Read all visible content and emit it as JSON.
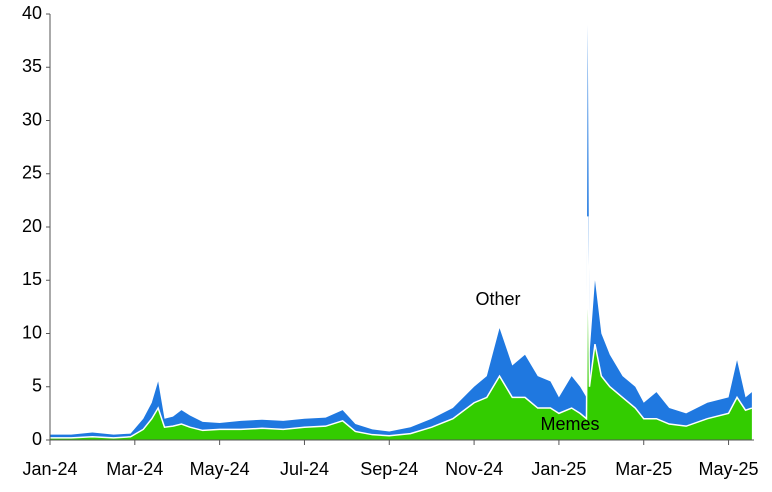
{
  "chart_data": {
    "type": "stacked_area",
    "x": [
      0,
      0.5,
      1,
      1.5,
      1.9,
      2.2,
      2.4,
      2.55,
      2.7,
      2.9,
      3.1,
      3.3,
      3.6,
      4,
      4.5,
      5,
      5.5,
      6,
      6.5,
      6.9,
      7.2,
      7.6,
      8,
      8.5,
      9,
      9.5,
      10,
      10.3,
      10.6,
      10.9,
      11.2,
      11.5,
      11.8,
      12,
      12.3,
      12.5,
      12.65,
      12.68,
      12.72,
      12.85,
      13,
      13.2,
      13.5,
      13.8,
      14,
      14.3,
      14.6,
      15,
      15.5,
      16,
      16.2,
      16.4,
      16.55
    ],
    "series": [
      {
        "name": "Memes",
        "color": "#33cc00",
        "values": [
          0.2,
          0.2,
          0.3,
          0.2,
          0.3,
          1,
          2,
          3,
          1.2,
          1.3,
          1.5,
          1.2,
          0.9,
          1,
          1,
          1.1,
          1,
          1.2,
          1.3,
          1.8,
          0.8,
          0.5,
          0.4,
          0.6,
          1.2,
          2,
          3.5,
          4,
          6,
          4,
          4,
          3,
          3,
          2.5,
          3,
          2.5,
          2,
          21,
          5,
          9,
          6,
          5,
          4,
          3,
          2,
          2,
          1.5,
          1.3,
          2,
          2.5,
          4,
          2.8,
          3
        ]
      },
      {
        "name": "Other",
        "color": "#1f78e0",
        "values": [
          0.3,
          0.3,
          0.4,
          0.3,
          0.3,
          1,
          1.5,
          2.5,
          0.8,
          0.9,
          1.3,
          1.1,
          0.8,
          0.6,
          0.8,
          0.8,
          0.8,
          0.8,
          0.8,
          1,
          0.7,
          0.5,
          0.4,
          0.6,
          0.8,
          1,
          1.5,
          2,
          4.5,
          3,
          4,
          3,
          2.5,
          1.5,
          3,
          2.5,
          2,
          18,
          3,
          6,
          4,
          3,
          2,
          2,
          1.5,
          2.5,
          1.5,
          1.2,
          1.5,
          1.5,
          3.5,
          1.2,
          1.5
        ]
      }
    ],
    "xlim": [
      0,
      16.6
    ],
    "xticks": [
      {
        "value": 0,
        "label": "Jan-24"
      },
      {
        "value": 2,
        "label": "Mar-24"
      },
      {
        "value": 4,
        "label": "May-24"
      },
      {
        "value": 6,
        "label": "Jul-24"
      },
      {
        "value": 8,
        "label": "Sep-24"
      },
      {
        "value": 10,
        "label": "Nov-24"
      },
      {
        "value": 12,
        "label": "Jan-25"
      },
      {
        "value": 14,
        "label": "Mar-25"
      },
      {
        "value": 16,
        "label": "May-25"
      }
    ],
    "ylim": [
      0,
      40
    ],
    "yticks": [
      0,
      5,
      10,
      15,
      20,
      25,
      30,
      35,
      40
    ],
    "grid": false
  }
}
